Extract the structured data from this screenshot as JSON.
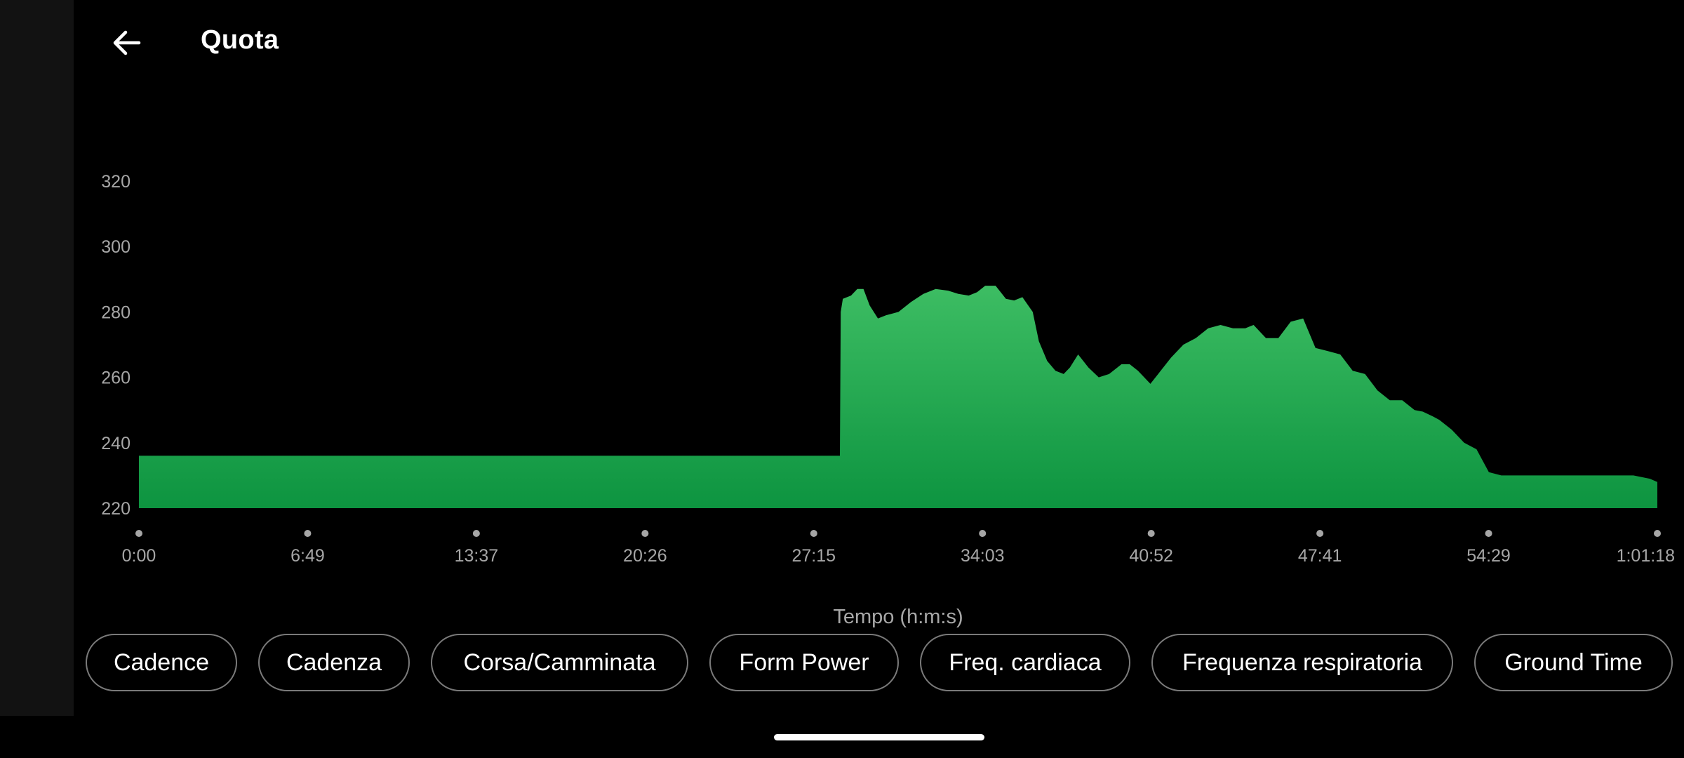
{
  "header": {
    "title": "Quota",
    "back_icon": "arrow-left-icon"
  },
  "chips": [
    {
      "label": "Cadence"
    },
    {
      "label": "Cadenza"
    },
    {
      "label": "Corsa/Camminata"
    },
    {
      "label": "Form Power"
    },
    {
      "label": "Freq. cardiaca"
    },
    {
      "label": "Frequenza respiratoria"
    },
    {
      "label": "Ground Time"
    }
  ],
  "chart_data": {
    "type": "area",
    "title": "",
    "xlabel": "Tempo (h:m:s)",
    "ylabel": "",
    "ylim": [
      220,
      320
    ],
    "yticks": [
      220,
      240,
      260,
      280,
      300,
      320
    ],
    "xtick_labels": [
      "0:00",
      "6:49",
      "13:37",
      "20:26",
      "27:15",
      "34:03",
      "40:52",
      "47:41",
      "54:29",
      "1:01:18"
    ],
    "xlim_seconds": [
      0,
      3678
    ],
    "grid": false,
    "fill_color_top": "#3dbd63",
    "fill_color_bottom": "#0d9440",
    "x_seconds": [
      0,
      1698,
      1700,
      1705,
      1725,
      1740,
      1755,
      1770,
      1790,
      1810,
      1840,
      1870,
      1900,
      1930,
      1960,
      1985,
      2010,
      2030,
      2050,
      2075,
      2100,
      2120,
      2140,
      2165,
      2180,
      2200,
      2220,
      2240,
      2255,
      2275,
      2300,
      2325,
      2350,
      2380,
      2400,
      2420,
      2450,
      2475,
      2500,
      2530,
      2560,
      2590,
      2620,
      2650,
      2680,
      2700,
      2730,
      2760,
      2790,
      2820,
      2850,
      2880,
      2910,
      2940,
      2970,
      3000,
      3030,
      3060,
      3090,
      3110,
      3135,
      3150,
      3180,
      3210,
      3240,
      3270,
      3300,
      3330,
      3360,
      3390,
      3420,
      3450,
      3475,
      3500,
      3530,
      3560,
      3580,
      3600,
      3620,
      3640,
      3660,
      3678
    ],
    "y_values": [
      236,
      236,
      280,
      284,
      285,
      287,
      287,
      282,
      278,
      279,
      280,
      283,
      285.5,
      287,
      286.5,
      285.5,
      285,
      286,
      288,
      288,
      284,
      283.5,
      284.5,
      280,
      271,
      265,
      262,
      261,
      263,
      267,
      263,
      260,
      261,
      264,
      264,
      262,
      258,
      262,
      266,
      270,
      272,
      275,
      276,
      275,
      275,
      276,
      272,
      272,
      277,
      278,
      269,
      268,
      267,
      262,
      261,
      256,
      253,
      253,
      250,
      249.5,
      248,
      247,
      244,
      240,
      238,
      231,
      230,
      230,
      230,
      230,
      230,
      230,
      230,
      230,
      230,
      230,
      230,
      230,
      230,
      229.5,
      229,
      228
    ]
  }
}
